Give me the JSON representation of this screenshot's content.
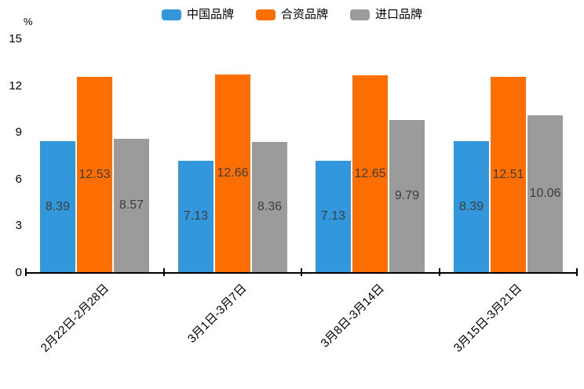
{
  "chart_data": {
    "type": "bar",
    "title": "",
    "xlabel": "",
    "ylabel": "%",
    "ylim": [
      0,
      15
    ],
    "yticks": [
      0,
      3,
      6,
      9,
      12,
      15
    ],
    "grid": false,
    "legend_position": "top-center",
    "value_labels_inside_bars": true,
    "categories": [
      "2月22日-2月28日",
      "3月1日-3月7日",
      "3月8日-3月14日",
      "3月15日-3月21日"
    ],
    "series": [
      {
        "name": "中国品牌",
        "color": "#3398DB",
        "values": [
          8.39,
          7.13,
          7.13,
          8.39
        ]
      },
      {
        "name": "合资品牌",
        "color": "#FF6E00",
        "values": [
          12.53,
          12.66,
          12.65,
          12.51
        ]
      },
      {
        "name": "进口品牌",
        "color": "#9B9B9B",
        "values": [
          8.57,
          8.36,
          9.79,
          10.06
        ]
      }
    ],
    "value_label_color": "#3c3c3c",
    "axis_color": "#000000"
  }
}
